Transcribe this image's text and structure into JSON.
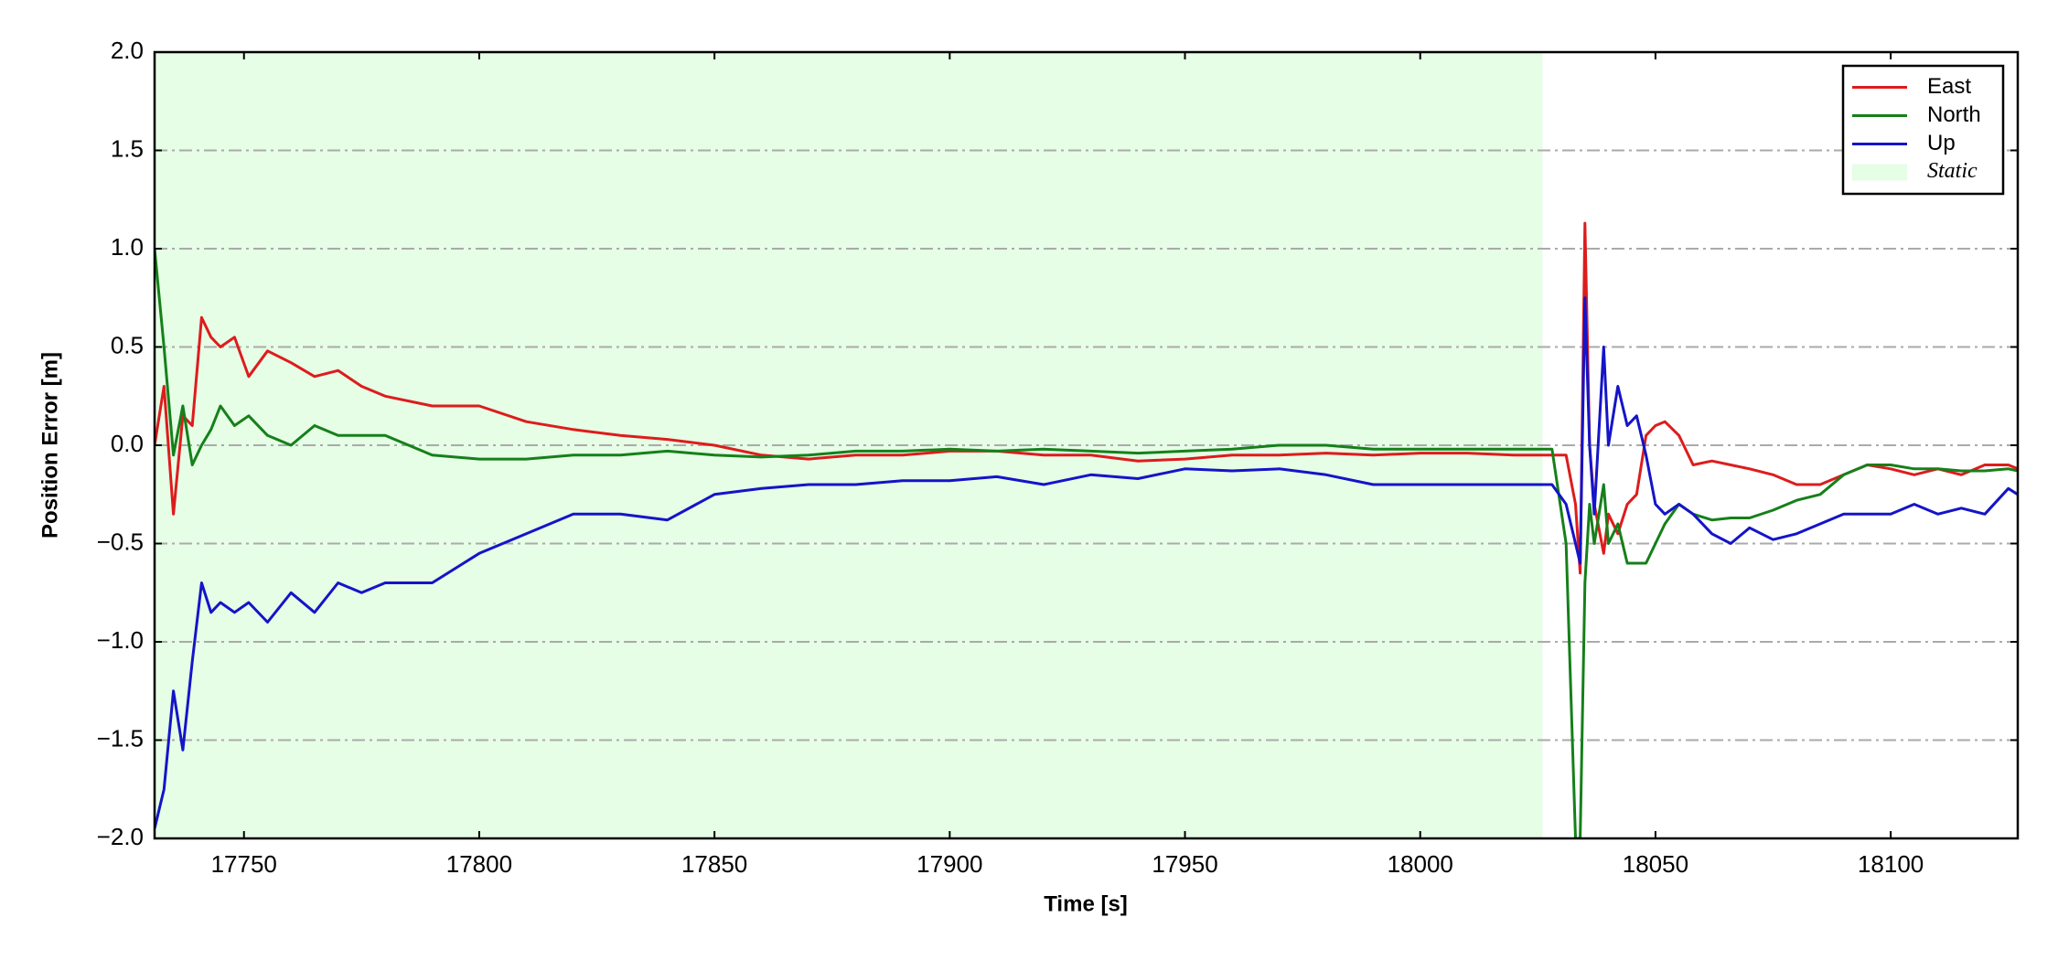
{
  "chart_data": {
    "type": "line",
    "xlabel": "Time [s]",
    "ylabel": "Position Error [m]",
    "x": [
      17731,
      17733,
      17735,
      17737,
      17739,
      17741,
      17743,
      17745,
      17748,
      17751,
      17755,
      17760,
      17765,
      17770,
      17775,
      17780,
      17790,
      17800,
      17810,
      17820,
      17830,
      17840,
      17850,
      17860,
      17870,
      17880,
      17890,
      17900,
      17910,
      17920,
      17930,
      17940,
      17950,
      17960,
      17970,
      17980,
      17990,
      18000,
      18010,
      18020,
      18028,
      18031,
      18033,
      18034,
      18035,
      18036,
      18037,
      18039,
      18040,
      18042,
      18044,
      18046,
      18048,
      18050,
      18052,
      18055,
      18058,
      18062,
      18066,
      18070,
      18075,
      18080,
      18085,
      18090,
      18095,
      18100,
      18105,
      18110,
      18115,
      18120,
      18125,
      18127
    ],
    "series": [
      {
        "name": "East",
        "color": "#dd1c1c",
        "values": [
          0.0,
          0.3,
          -0.35,
          0.15,
          0.1,
          0.65,
          0.55,
          0.5,
          0.55,
          0.35,
          0.48,
          0.42,
          0.35,
          0.38,
          0.3,
          0.25,
          0.2,
          0.2,
          0.12,
          0.08,
          0.05,
          0.03,
          0.0,
          -0.05,
          -0.07,
          -0.05,
          -0.05,
          -0.03,
          -0.03,
          -0.05,
          -0.05,
          -0.08,
          -0.07,
          -0.05,
          -0.05,
          -0.04,
          -0.05,
          -0.04,
          -0.04,
          -0.05,
          -0.05,
          -0.05,
          -0.3,
          -0.65,
          1.13,
          0.0,
          -0.3,
          -0.55,
          -0.35,
          -0.45,
          -0.3,
          -0.25,
          0.05,
          0.1,
          0.12,
          0.05,
          -0.1,
          -0.08,
          -0.1,
          -0.12,
          -0.15,
          -0.2,
          -0.2,
          -0.15,
          -0.1,
          -0.12,
          -0.15,
          -0.12,
          -0.15,
          -0.1,
          -0.1,
          -0.12
        ]
      },
      {
        "name": "North",
        "color": "#15801a",
        "values": [
          1.0,
          0.5,
          -0.05,
          0.2,
          -0.1,
          0.0,
          0.08,
          0.2,
          0.1,
          0.15,
          0.05,
          0.0,
          0.1,
          0.05,
          0.05,
          0.05,
          -0.05,
          -0.07,
          -0.07,
          -0.05,
          -0.05,
          -0.03,
          -0.05,
          -0.06,
          -0.05,
          -0.03,
          -0.03,
          -0.02,
          -0.03,
          -0.02,
          -0.03,
          -0.04,
          -0.03,
          -0.02,
          0.0,
          0.0,
          -0.02,
          -0.02,
          -0.02,
          -0.02,
          -0.02,
          -0.5,
          -2.0,
          -2.0,
          -0.7,
          -0.3,
          -0.5,
          -0.2,
          -0.5,
          -0.4,
          -0.6,
          -0.6,
          -0.6,
          -0.5,
          -0.4,
          -0.3,
          -0.35,
          -0.38,
          -0.37,
          -0.37,
          -0.33,
          -0.28,
          -0.25,
          -0.15,
          -0.1,
          -0.1,
          -0.12,
          -0.12,
          -0.13,
          -0.13,
          -0.12,
          -0.13
        ]
      },
      {
        "name": "Up",
        "color": "#1414c8",
        "values": [
          -1.95,
          -1.75,
          -1.25,
          -1.55,
          -1.1,
          -0.7,
          -0.85,
          -0.8,
          -0.85,
          -0.8,
          -0.9,
          -0.75,
          -0.85,
          -0.7,
          -0.75,
          -0.7,
          -0.7,
          -0.55,
          -0.45,
          -0.35,
          -0.35,
          -0.38,
          -0.25,
          -0.22,
          -0.2,
          -0.2,
          -0.18,
          -0.18,
          -0.16,
          -0.2,
          -0.15,
          -0.17,
          -0.12,
          -0.13,
          -0.12,
          -0.15,
          -0.2,
          -0.2,
          -0.2,
          -0.2,
          -0.2,
          -0.3,
          -0.5,
          -0.6,
          0.75,
          0.0,
          -0.35,
          0.5,
          0.0,
          0.3,
          0.1,
          0.15,
          -0.05,
          -0.3,
          -0.35,
          -0.3,
          -0.35,
          -0.45,
          -0.5,
          -0.42,
          -0.48,
          -0.45,
          -0.4,
          -0.35,
          -0.35,
          -0.35,
          -0.3,
          -0.35,
          -0.32,
          -0.35,
          -0.22,
          -0.25
        ]
      }
    ],
    "static_region": {
      "label": "Static",
      "color": "#e6fde6",
      "x": [
        17731,
        18026
      ]
    },
    "xlim": [
      17731,
      18127
    ],
    "ylim": [
      -2,
      2
    ],
    "xticks": [
      17750,
      17800,
      17850,
      17900,
      17950,
      18000,
      18050,
      18100
    ],
    "yticks": [
      {
        "value": -2,
        "label": "−2.0"
      },
      {
        "value": -1.5,
        "label": "−1.5"
      },
      {
        "value": -1,
        "label": "−1.0"
      },
      {
        "value": -0.5,
        "label": "−0.5"
      },
      {
        "value": 0,
        "label": "0.0"
      },
      0.5,
      {
        "value": 1,
        "label": "1.0"
      },
      1.5,
      {
        "value": 2,
        "label": "2.0"
      }
    ],
    "grid": true,
    "legend": "upper right"
  }
}
